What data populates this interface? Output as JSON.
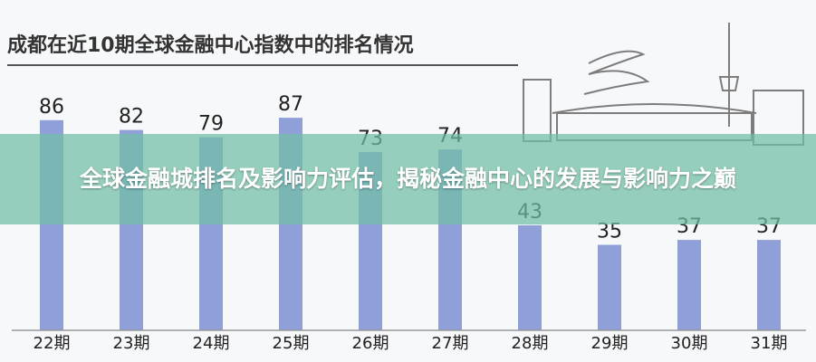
{
  "chart_data": {
    "type": "bar",
    "title": "成都在近10期全球金融中心指数中的排名情况",
    "categories": [
      "22期",
      "23期",
      "24期",
      "25期",
      "26期",
      "27期",
      "28期",
      "29期",
      "30期",
      "31期"
    ],
    "values": [
      86,
      82,
      79,
      87,
      73,
      74,
      43,
      35,
      37,
      37
    ],
    "color": "#8fa0d9"
  },
  "banner": {
    "text": "全球金融城排名及影响力评估，揭秘金融中心的发展与影响力之巅"
  }
}
